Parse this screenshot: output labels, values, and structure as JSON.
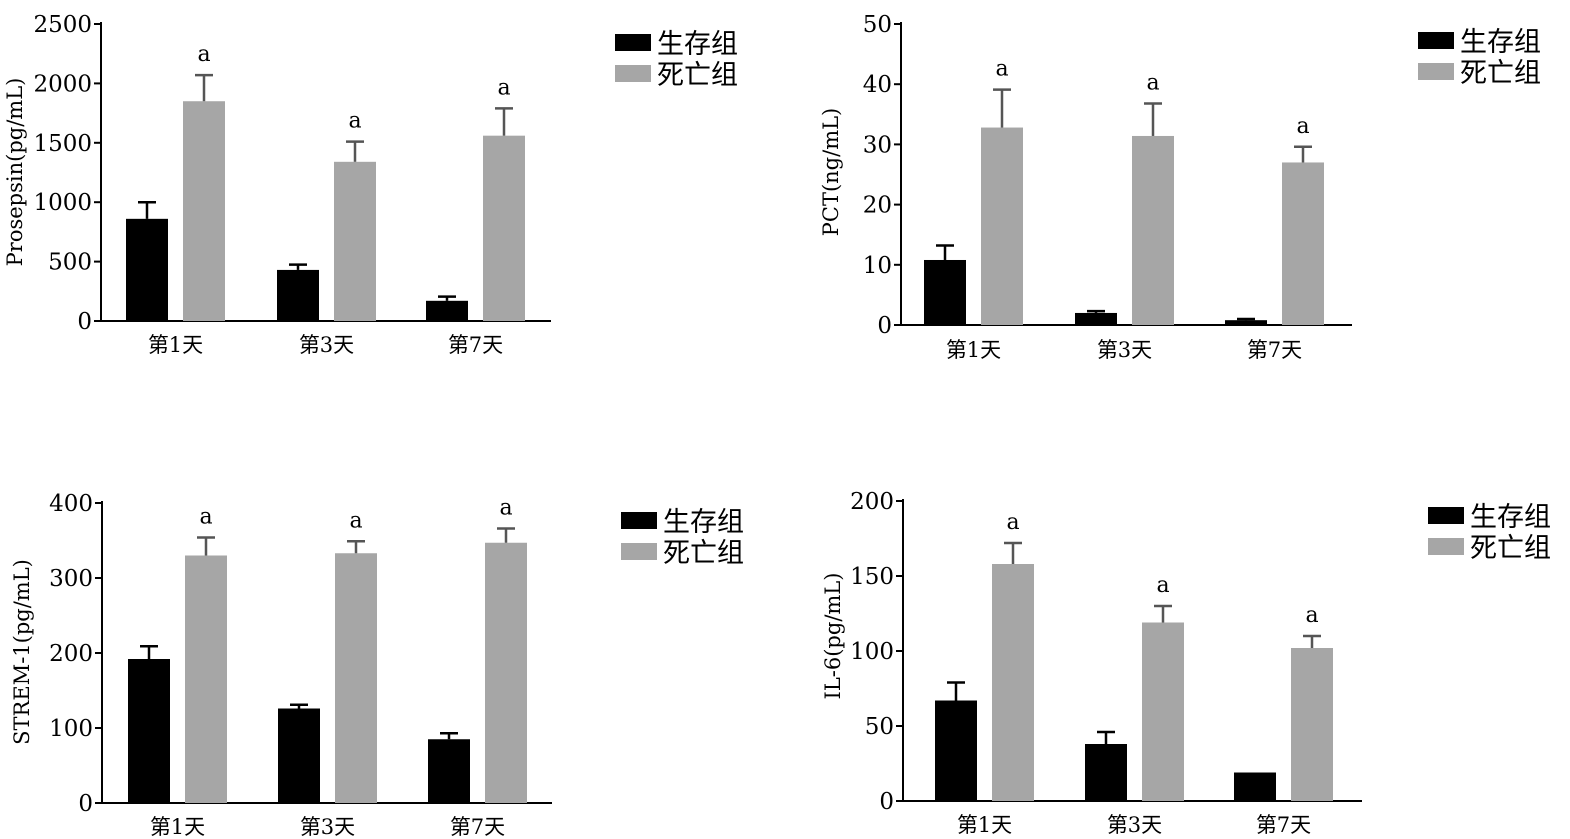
{
  "chart_data": [
    {
      "type": "bar",
      "title": "",
      "xlabel": "",
      "ylabel": "Prosepsin(pg/mL)",
      "ylim": [
        0,
        2500
      ],
      "yticks": [
        0,
        500,
        1000,
        1500,
        2000,
        2500
      ],
      "categories": [
        "第1天",
        "第3天",
        "第7天"
      ],
      "series": [
        {
          "name": "生存组",
          "color": "#000000",
          "values": [
            860,
            430,
            170
          ],
          "errors": [
            140,
            45,
            35
          ]
        },
        {
          "name": "死亡组",
          "color": "#a6a6a6",
          "values": [
            1850,
            1340,
            1560
          ],
          "errors": [
            220,
            170,
            230
          ]
        }
      ],
      "annotations": [
        "a",
        "a",
        "a"
      ],
      "legend": "top-right"
    },
    {
      "type": "bar",
      "title": "",
      "xlabel": "",
      "ylabel": "PCT(ng/mL)",
      "ylim": [
        0,
        50
      ],
      "yticks": [
        0,
        10,
        20,
        30,
        40,
        50
      ],
      "categories": [
        "第1天",
        "第3天",
        "第7天"
      ],
      "series": [
        {
          "name": "生存组",
          "color": "#000000",
          "values": [
            10.8,
            2.0,
            0.8
          ],
          "errors": [
            2.4,
            0.3,
            0.2
          ]
        },
        {
          "name": "死亡组",
          "color": "#a6a6a6",
          "values": [
            32.8,
            31.4,
            27.0
          ],
          "errors": [
            6.3,
            5.4,
            2.6
          ]
        }
      ],
      "annotations": [
        "a",
        "a",
        "a"
      ],
      "legend": "top-right"
    },
    {
      "type": "bar",
      "title": "",
      "xlabel": "",
      "ylabel": "STREM-1(pg/mL)",
      "ylim": [
        0,
        400
      ],
      "yticks": [
        0,
        100,
        200,
        300,
        400
      ],
      "categories": [
        "第1天",
        "第3天",
        "第7天"
      ],
      "series": [
        {
          "name": "生存组",
          "color": "#000000",
          "values": [
            192,
            126,
            85
          ],
          "errors": [
            17,
            5,
            8
          ]
        },
        {
          "name": "死亡组",
          "color": "#a6a6a6",
          "values": [
            330,
            333,
            347
          ],
          "errors": [
            24,
            16,
            19
          ]
        }
      ],
      "annotations": [
        "a",
        "a",
        "a"
      ],
      "legend": "top-right"
    },
    {
      "type": "bar",
      "title": "",
      "xlabel": "",
      "ylabel": "IL-6(pg/mL)",
      "ylim": [
        0,
        200
      ],
      "yticks": [
        0,
        50,
        100,
        150,
        200
      ],
      "categories": [
        "第1天",
        "第3天",
        "第7天"
      ],
      "series": [
        {
          "name": "生存组",
          "color": "#000000",
          "values": [
            67,
            38,
            19
          ],
          "errors": [
            12,
            8,
            0
          ]
        },
        {
          "name": "死亡组",
          "color": "#a6a6a6",
          "values": [
            158,
            119,
            102
          ],
          "errors": [
            14,
            11,
            8
          ]
        }
      ],
      "annotations": [
        "a",
        "a",
        "a"
      ],
      "legend": "top-right"
    }
  ]
}
